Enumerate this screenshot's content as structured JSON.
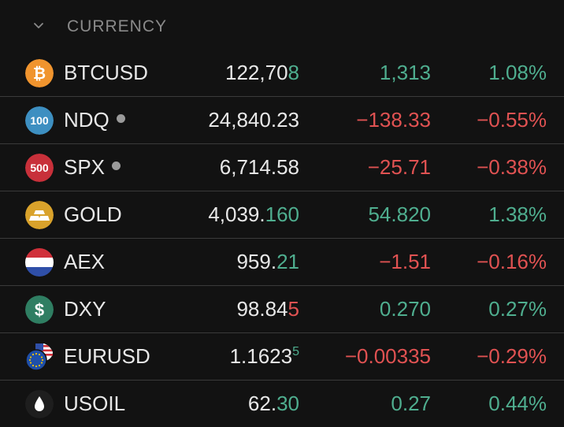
{
  "section": {
    "title": "CURRENCY",
    "collapse_icon": "chevron-down-icon"
  },
  "colors": {
    "up": "#4fae8f",
    "down": "#e05252",
    "background": "#121212"
  },
  "rows": [
    {
      "symbol": "BTCUSD",
      "icon": "bitcoin-icon",
      "icon_text": "₿",
      "icon_color": "#f0942e",
      "has_dot": false,
      "price_main": "122,70",
      "price_frac": "8",
      "price_frac_dir": "up",
      "price_sup": "",
      "change": "1,313",
      "change_pct": "1.08%",
      "direction": "up"
    },
    {
      "symbol": "NDQ",
      "icon": "nasdaq-100-icon",
      "icon_text": "100",
      "icon_color": "#3d8fc1",
      "has_dot": true,
      "price_main": "24,840.23",
      "price_frac": "",
      "price_frac_dir": "",
      "price_sup": "",
      "change": "−138.33",
      "change_pct": "−0.55%",
      "direction": "down"
    },
    {
      "symbol": "SPX",
      "icon": "sp-500-icon",
      "icon_text": "500",
      "icon_color": "#c8303a",
      "has_dot": true,
      "price_main": "6,714.58",
      "price_frac": "",
      "price_frac_dir": "",
      "price_sup": "",
      "change": "−25.71",
      "change_pct": "−0.38%",
      "direction": "down"
    },
    {
      "symbol": "GOLD",
      "icon": "gold-bars-icon",
      "icon_text": "",
      "icon_color": "#d9a22b",
      "has_dot": false,
      "price_main": "4,039.",
      "price_frac": "160",
      "price_frac_dir": "up",
      "price_sup": "",
      "change": "54.820",
      "change_pct": "1.38%",
      "direction": "up"
    },
    {
      "symbol": "AEX",
      "icon": "netherlands-flag-icon",
      "icon_text": "",
      "icon_color": "#ffffff",
      "has_dot": false,
      "price_main": "959.",
      "price_frac": "21",
      "price_frac_dir": "up",
      "price_sup": "",
      "change": "−1.51",
      "change_pct": "−0.16%",
      "direction": "down"
    },
    {
      "symbol": "DXY",
      "icon": "dollar-icon",
      "icon_text": "$",
      "icon_color": "#2f7e62",
      "has_dot": false,
      "price_main": "98.84",
      "price_frac": "5",
      "price_frac_dir": "down",
      "price_sup": "",
      "change": "0.270",
      "change_pct": "0.27%",
      "direction": "up"
    },
    {
      "symbol": "EURUSD",
      "icon": "eu-us-flags-icon",
      "icon_text": "",
      "icon_color": "#1f4fa8",
      "has_dot": false,
      "price_main": "1.1623",
      "price_frac": "",
      "price_frac_dir": "",
      "price_sup": "5",
      "change": "−0.00335",
      "change_pct": "−0.29%",
      "direction": "down"
    },
    {
      "symbol": "USOIL",
      "icon": "oil-drop-icon",
      "icon_text": "",
      "icon_color": "#1e1e1e",
      "has_dot": false,
      "price_main": "62.",
      "price_frac": "30",
      "price_frac_dir": "up",
      "price_sup": "",
      "change": "0.27",
      "change_pct": "0.44%",
      "direction": "up"
    }
  ]
}
